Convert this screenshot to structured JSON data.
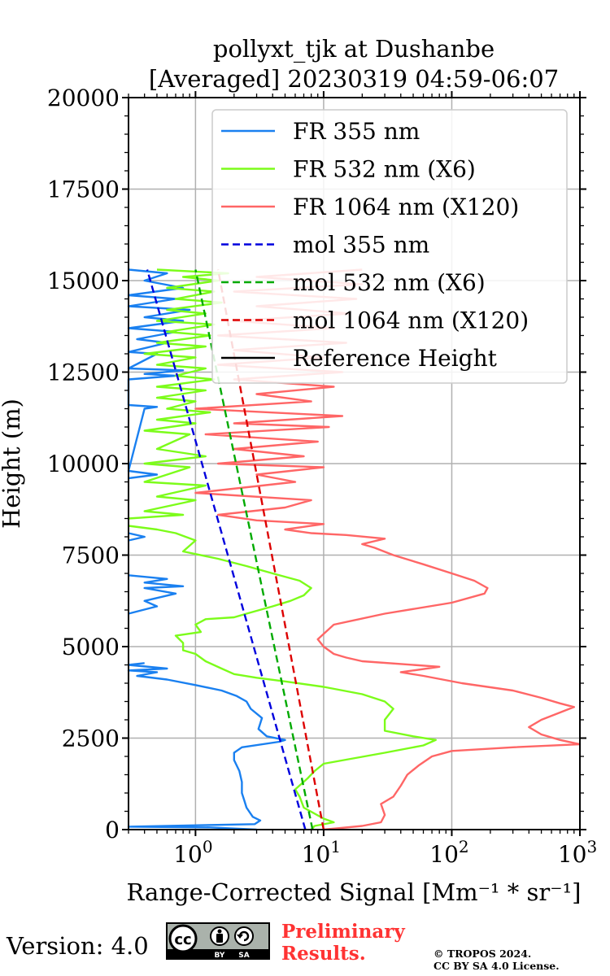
{
  "chart_data": {
    "type": "line",
    "title": "pollyxt_tjk at Dushanbe",
    "subtitle": "[Averaged] 20230319 04:59-06:07",
    "xlabel": "Range-Corrected Signal [Mm⁻¹ * sr⁻¹]",
    "ylabel": "Height (m)",
    "xscale": "log",
    "xlim": [
      0.3,
      1000
    ],
    "ylim": [
      0,
      20000
    ],
    "grid": true,
    "legend_position": "top-right",
    "x_ticks": [
      {
        "value": 1,
        "base": "10",
        "exp": "0"
      },
      {
        "value": 10,
        "base": "10",
        "exp": "1"
      },
      {
        "value": 100,
        "base": "10",
        "exp": "2"
      },
      {
        "value": 1000,
        "base": "10",
        "exp": "3"
      }
    ],
    "y_ticks": [
      "0",
      "2500",
      "5000",
      "7500",
      "10000",
      "12500",
      "15000",
      "17500",
      "20000"
    ],
    "series": [
      {
        "name": "FR 355 nm",
        "color": "#1a80f0",
        "dash": "solid",
        "points": [
          [
            3.0,
            0
          ],
          [
            1.3,
            60
          ],
          [
            0.3,
            80
          ],
          [
            2.9,
            150
          ],
          [
            3.2,
            250
          ],
          [
            2.8,
            350
          ],
          [
            2.5,
            600
          ],
          [
            2.4,
            800
          ],
          [
            2.3,
            1000
          ],
          [
            2.3,
            1300
          ],
          [
            2.2,
            1600
          ],
          [
            2.0,
            1900
          ],
          [
            2.0,
            2100
          ],
          [
            2.3,
            2250
          ],
          [
            4.5,
            2400
          ],
          [
            5.0,
            2450
          ],
          [
            3.6,
            2550
          ],
          [
            3.1,
            2750
          ],
          [
            3.3,
            3050
          ],
          [
            2.7,
            3300
          ],
          [
            2.5,
            3500
          ],
          [
            2.1,
            3650
          ],
          [
            1.6,
            3800
          ],
          [
            1.0,
            3950
          ],
          [
            0.6,
            4100
          ],
          [
            0.35,
            4200
          ],
          [
            0.5,
            4300
          ],
          [
            0.3,
            4350
          ],
          [
            0.6,
            4400
          ],
          [
            0.3,
            4500
          ],
          [
            0.4,
            4550
          ]
        ]
      },
      {
        "name": "FR 355 nm",
        "color": "#1a80f0",
        "dash": "solid",
        "points": [
          [
            0.3,
            5900
          ],
          [
            0.5,
            6100
          ],
          [
            0.4,
            6250
          ],
          [
            0.7,
            6450
          ],
          [
            0.4,
            6600
          ],
          [
            0.8,
            6650
          ],
          [
            0.4,
            6750
          ],
          [
            0.6,
            6850
          ],
          [
            0.3,
            6950
          ]
        ]
      },
      {
        "name": "FR 355 nm",
        "color": "#1a80f0",
        "dash": "solid",
        "points": [
          [
            0.3,
            7900
          ],
          [
            0.4,
            8000
          ],
          [
            0.3,
            8100
          ]
        ]
      },
      {
        "name": "FR 355 nm",
        "color": "#1a80f0",
        "dash": "solid",
        "points": [
          [
            0.3,
            9600
          ],
          [
            0.5,
            9700
          ],
          [
            0.3,
            9800
          ],
          [
            0.4,
            11500
          ],
          [
            0.5,
            11550
          ],
          [
            0.3,
            11600
          ],
          [
            0.3,
            12300
          ],
          [
            0.7,
            12400
          ],
          [
            0.4,
            12450
          ],
          [
            0.8,
            12550
          ],
          [
            0.3,
            12600
          ],
          [
            0.5,
            13000
          ],
          [
            0.3,
            13050
          ],
          [
            0.6,
            13300
          ],
          [
            0.35,
            13400
          ],
          [
            0.7,
            13600
          ],
          [
            0.3,
            13700
          ],
          [
            0.8,
            13900
          ],
          [
            0.4,
            14000
          ],
          [
            0.9,
            14200
          ],
          [
            0.3,
            14300
          ],
          [
            0.7,
            14500
          ],
          [
            0.3,
            14600
          ],
          [
            0.8,
            14800
          ],
          [
            0.4,
            15000
          ],
          [
            0.6,
            15200
          ],
          [
            0.3,
            15300
          ]
        ]
      },
      {
        "name": "FR 532 nm (X6)",
        "color": "#7cfc1a",
        "dash": "solid",
        "points": [
          [
            8.0,
            0
          ],
          [
            8.5,
            100
          ],
          [
            12,
            200
          ],
          [
            10,
            300
          ],
          [
            7.0,
            600
          ],
          [
            6.5,
            900
          ],
          [
            6.0,
            1100
          ],
          [
            7.5,
            1400
          ],
          [
            8.5,
            1600
          ],
          [
            10,
            1800
          ],
          [
            30,
            2100
          ],
          [
            60,
            2300
          ],
          [
            75,
            2450
          ],
          [
            50,
            2550
          ],
          [
            30,
            2700
          ],
          [
            30,
            3000
          ],
          [
            35,
            3300
          ],
          [
            30,
            3500
          ],
          [
            20,
            3700
          ],
          [
            10,
            3900
          ],
          [
            5,
            4050
          ],
          [
            3,
            4150
          ],
          [
            2,
            4250
          ],
          [
            1.6,
            4400
          ],
          [
            1.2,
            4600
          ],
          [
            1.0,
            4800
          ],
          [
            0.8,
            4900
          ],
          [
            0.8,
            5100
          ],
          [
            0.7,
            5300
          ],
          [
            1.1,
            5400
          ],
          [
            1.0,
            5600
          ],
          [
            1.2,
            5750
          ],
          [
            2.0,
            5800
          ],
          [
            2.5,
            5900
          ],
          [
            4.0,
            6100
          ],
          [
            5.5,
            6250
          ],
          [
            7.0,
            6400
          ],
          [
            8.0,
            6600
          ],
          [
            6.5,
            6800
          ],
          [
            4.0,
            7000
          ],
          [
            2.5,
            7200
          ],
          [
            1.5,
            7400
          ],
          [
            0.8,
            7600
          ],
          [
            1.0,
            7900
          ],
          [
            0.7,
            8100
          ],
          [
            0.5,
            8200
          ],
          [
            0.3,
            8300
          ]
        ]
      },
      {
        "name": "FR 532 nm (X6)",
        "color": "#7cfc1a",
        "dash": "solid",
        "points": [
          [
            0.3,
            8500
          ],
          [
            0.8,
            8600
          ],
          [
            0.4,
            8700
          ],
          [
            1.0,
            9000
          ],
          [
            0.5,
            9100
          ],
          [
            1.2,
            9400
          ],
          [
            0.4,
            9500
          ],
          [
            0.9,
            9900
          ],
          [
            0.4,
            10000
          ],
          [
            1.2,
            10200
          ],
          [
            0.5,
            10400
          ],
          [
            0.9,
            10800
          ],
          [
            0.4,
            10900
          ],
          [
            1.0,
            11100
          ],
          [
            0.5,
            11200
          ],
          [
            1.3,
            11400
          ],
          [
            0.6,
            11500
          ],
          [
            1.0,
            11700
          ],
          [
            0.5,
            11800
          ],
          [
            1.2,
            12000
          ],
          [
            0.5,
            12100
          ],
          [
            1.4,
            12300
          ],
          [
            0.7,
            12400
          ],
          [
            1.2,
            12600
          ],
          [
            0.5,
            12700
          ],
          [
            1.0,
            12900
          ],
          [
            0.4,
            13000
          ],
          [
            1.2,
            13200
          ],
          [
            0.5,
            13300
          ],
          [
            1.3,
            13500
          ],
          [
            0.6,
            13600
          ],
          [
            1.4,
            13800
          ],
          [
            0.5,
            13900
          ],
          [
            1.2,
            14100
          ],
          [
            0.6,
            14200
          ],
          [
            1.6,
            14400
          ],
          [
            0.7,
            14500
          ],
          [
            1.4,
            14700
          ],
          [
            0.6,
            14800
          ],
          [
            1.5,
            15000
          ],
          [
            0.8,
            15100
          ],
          [
            1.8,
            15200
          ],
          [
            0.5,
            15300
          ]
        ]
      },
      {
        "name": "FR 1064 nm (X120)",
        "color": "#ff6666",
        "dash": "solid",
        "points": [
          [
            10,
            0
          ],
          [
            20,
            100
          ],
          [
            28,
            200
          ],
          [
            30,
            400
          ],
          [
            28,
            700
          ],
          [
            35,
            900
          ],
          [
            40,
            1200
          ],
          [
            45,
            1500
          ],
          [
            55,
            1750
          ],
          [
            70,
            2000
          ],
          [
            100,
            2150
          ],
          [
            300,
            2250
          ],
          [
            1000,
            2330
          ],
          [
            700,
            2450
          ],
          [
            500,
            2600
          ],
          [
            400,
            2800
          ],
          [
            500,
            3000
          ],
          [
            700,
            3200
          ],
          [
            900,
            3350
          ],
          [
            700,
            3450
          ],
          [
            500,
            3600
          ],
          [
            300,
            3800
          ],
          [
            120,
            4000
          ],
          [
            60,
            4200
          ],
          [
            40,
            4300
          ],
          [
            80,
            4450
          ],
          [
            20,
            4600
          ],
          [
            15,
            4700
          ],
          [
            12,
            4800
          ],
          [
            10,
            5000
          ],
          [
            9,
            5200
          ],
          [
            12,
            5600
          ],
          [
            30,
            5900
          ],
          [
            100,
            6200
          ],
          [
            180,
            6450
          ],
          [
            190,
            6600
          ],
          [
            150,
            6800
          ],
          [
            100,
            7000
          ],
          [
            60,
            7250
          ],
          [
            35,
            7500
          ],
          [
            25,
            7700
          ],
          [
            20,
            7800
          ],
          [
            30,
            7950
          ],
          [
            15,
            8050
          ],
          [
            8,
            8100
          ],
          [
            5,
            8200
          ],
          [
            10,
            8350
          ],
          [
            3,
            8450
          ],
          [
            1.5,
            8600
          ],
          [
            5,
            8800
          ],
          [
            8,
            9000
          ],
          [
            1.0,
            9200
          ],
          [
            6,
            9500
          ],
          [
            3,
            9700
          ],
          [
            10,
            9900
          ],
          [
            1.5,
            10000
          ],
          [
            7,
            10200
          ],
          [
            2,
            10400
          ],
          [
            9,
            10600
          ],
          [
            1.2,
            10800
          ],
          [
            11,
            11000
          ],
          [
            2,
            11100
          ],
          [
            14,
            11300
          ],
          [
            1.0,
            11500
          ],
          [
            8,
            11700
          ],
          [
            3,
            11900
          ],
          [
            12,
            12100
          ],
          [
            2,
            12300
          ],
          [
            14,
            12500
          ],
          [
            1.5,
            12700
          ],
          [
            10,
            12900
          ],
          [
            2,
            13100
          ],
          [
            15,
            13300
          ],
          [
            1.5,
            13500
          ],
          [
            12,
            13700
          ],
          [
            2,
            13900
          ],
          [
            16,
            14100
          ],
          [
            3,
            14300
          ],
          [
            18,
            14500
          ],
          [
            2,
            14700
          ],
          [
            20,
            14900
          ],
          [
            3,
            15100
          ],
          [
            20,
            15300
          ]
        ]
      },
      {
        "name": "mol 355 nm",
        "color": "#0000dd",
        "dash": "dashed",
        "points": [
          [
            7.2,
            0
          ],
          [
            0.42,
            15300
          ]
        ]
      },
      {
        "name": "mol 532 nm (X6)",
        "color": "#00aa00",
        "dash": "dashed",
        "points": [
          [
            8.2,
            0
          ],
          [
            1.0,
            15300
          ]
        ]
      },
      {
        "name": "mol 1064 nm (X120)",
        "color": "#dd0000",
        "dash": "dashed",
        "points": [
          [
            10.0,
            0
          ],
          [
            1.5,
            15300
          ]
        ]
      }
    ],
    "legend": [
      {
        "label": "FR 355 nm",
        "color": "#1a80f0",
        "dash": "solid"
      },
      {
        "label": "FR 532 nm (X6)",
        "color": "#7cfc1a",
        "dash": "solid"
      },
      {
        "label": "FR 1064 nm (X120)",
        "color": "#ff6666",
        "dash": "solid"
      },
      {
        "label": "mol 355 nm",
        "color": "#0000dd",
        "dash": "dashed"
      },
      {
        "label": "mol 532 nm (X6)",
        "color": "#00aa00",
        "dash": "dashed"
      },
      {
        "label": "mol 1064 nm (X120)",
        "color": "#dd0000",
        "dash": "dashed"
      },
      {
        "label": "Reference Height",
        "color": "#000000",
        "dash": "solid"
      }
    ]
  },
  "footer": {
    "version": "Version: 4.0",
    "badge_cc": "cc",
    "badge_by": "BY",
    "badge_sa": "SA",
    "preliminary_line1": "Preliminary",
    "preliminary_line2": "Results.",
    "copyright_line1": "© TROPOS 2024.",
    "copyright_line2": "CC BY SA 4.0 License."
  }
}
